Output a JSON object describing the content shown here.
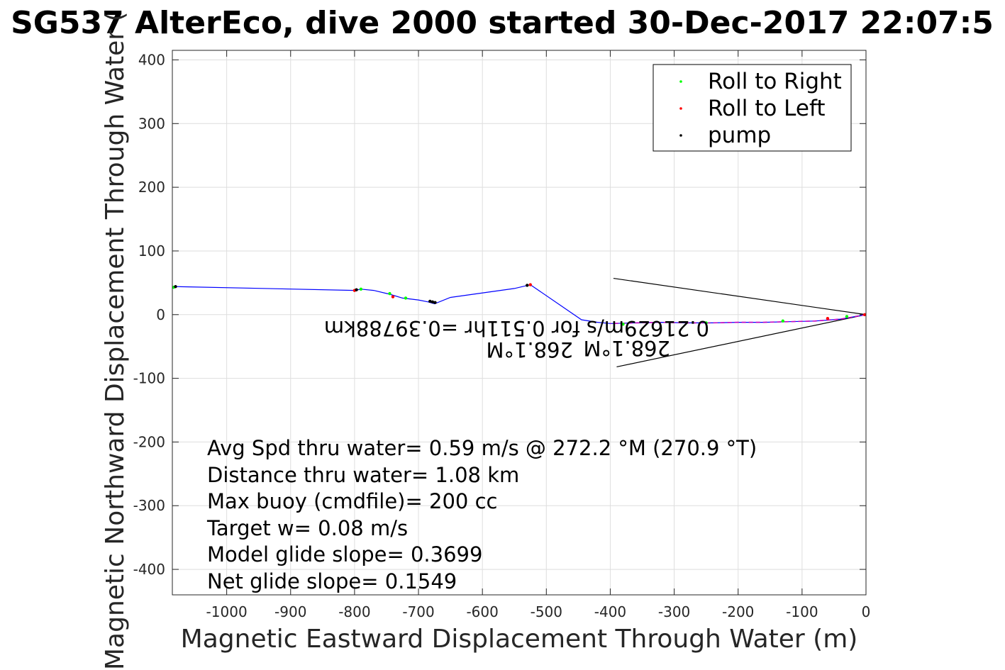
{
  "chart_data": {
    "type": "line",
    "title": "SG537 AlterEco, dive 2000 started 30-Dec-2017 22:07:5",
    "xlabel": "Magnetic Eastward Displacement Through Water (m)",
    "ylabel": "Magnetic Northward Displacement Through Water (",
    "xlim": [
      -1085,
      0
    ],
    "ylim": [
      -440,
      415
    ],
    "xticks": [
      -1000,
      -900,
      -800,
      -700,
      -600,
      -500,
      -400,
      -300,
      -200,
      -100,
      0
    ],
    "yticks": [
      -400,
      -300,
      -200,
      -100,
      0,
      100,
      200,
      300,
      400
    ],
    "grid": true,
    "legend_position": "top-right",
    "legend": [
      {
        "label": "Roll to Right",
        "color": "#00ff00"
      },
      {
        "label": "Roll to Left",
        "color": "#ff0000"
      },
      {
        "label": "pump",
        "color": "#000000"
      }
    ],
    "track": {
      "color": "#0000ff",
      "points": [
        [
          0,
          0
        ],
        [
          -40,
          -7
        ],
        [
          -80,
          -10
        ],
        [
          -120,
          -11
        ],
        [
          -160,
          -12
        ],
        [
          -200,
          -12
        ],
        [
          -240,
          -13
        ],
        [
          -280,
          -13
        ],
        [
          -320,
          -12
        ],
        [
          -360,
          -13
        ],
        [
          -400,
          -14
        ],
        [
          -420,
          -12
        ],
        [
          -445,
          -8
        ],
        [
          -525,
          47
        ],
        [
          -550,
          41
        ],
        [
          -650,
          27
        ],
        [
          -675,
          17
        ],
        [
          -685,
          20
        ],
        [
          -700,
          23
        ],
        [
          -725,
          26
        ],
        [
          -745,
          32
        ],
        [
          -770,
          38
        ],
        [
          -790,
          40
        ],
        [
          -800,
          38
        ],
        [
          -1080,
          44
        ],
        [
          -1085,
          43
        ]
      ]
    },
    "markers": {
      "roll_right": [
        [
          -790,
          40
        ],
        [
          -745,
          33
        ],
        [
          -720,
          26
        ],
        [
          -1083,
          43
        ],
        [
          -380,
          -15
        ],
        [
          -250,
          -13
        ],
        [
          -130,
          -10
        ],
        [
          -30,
          -3
        ]
      ],
      "roll_left": [
        [
          -800,
          38
        ],
        [
          -740,
          28
        ],
        [
          -525,
          47
        ],
        [
          -60,
          -6
        ],
        [
          -2,
          0
        ]
      ],
      "pump": [
        [
          -682,
          21
        ],
        [
          -678,
          20
        ],
        [
          -674,
          19
        ],
        [
          -530,
          46
        ],
        [
          -797,
          39
        ],
        [
          -1080,
          44
        ]
      ]
    },
    "depth_average_vectors": {
      "upper_line": [
        [
          0,
          0
        ],
        [
          -395,
          57
        ]
      ],
      "lower_line": [
        [
          0,
          0
        ],
        [
          -390,
          -82
        ]
      ],
      "labels": [
        "0.21629m/s for 0.511hr =0.39788km",
        "268.1°M",
        "268.1°M"
      ]
    },
    "annotations": [
      "Avg Spd thru water=  0.59 m/s @ 272.2 °M (270.9 °T)",
      "Distance thru water=  1.08 km",
      "Max buoy (cmdfile)= 200 cc",
      "Target w= 0.08 m/s",
      "Model glide slope= 0.3699",
      "Net glide slope= 0.1549"
    ]
  }
}
